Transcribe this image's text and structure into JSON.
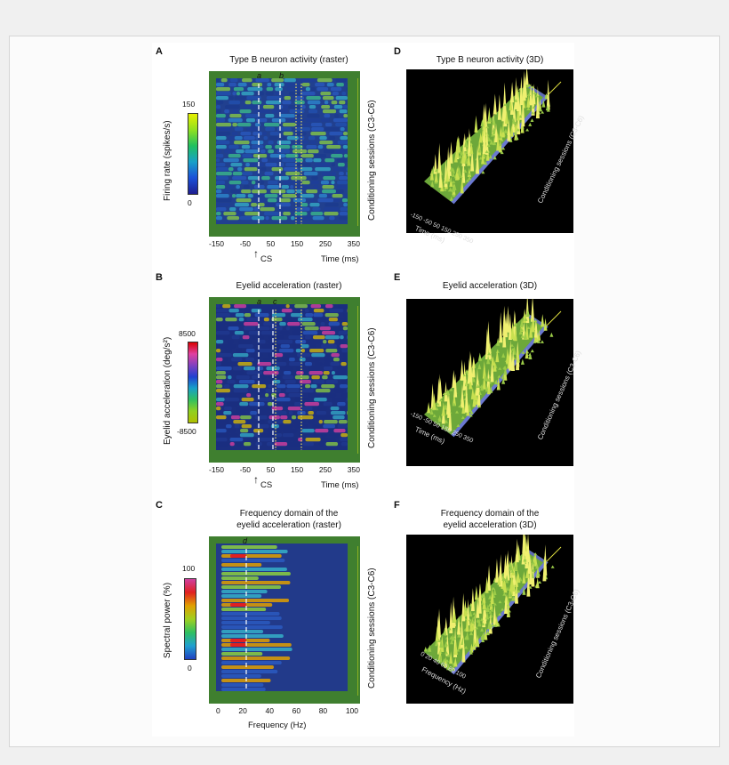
{
  "panels": {
    "A": {
      "letter": "A",
      "title": "Type B neuron activity (raster)",
      "markers": [
        "a",
        "b"
      ],
      "colorbar": {
        "max": "150",
        "min": "0",
        "label": "Firing rate (spikes/s)"
      },
      "right_label": "Conditioning sessions (C3-C6)",
      "x_ticks": [
        "-150",
        "-50",
        "50",
        "150",
        "250",
        "350"
      ],
      "x_label": "Time (ms)",
      "cs_label": "CS"
    },
    "B": {
      "letter": "B",
      "title": "Eyelid acceleration (raster)",
      "markers": [
        "a",
        "c"
      ],
      "colorbar": {
        "max": "8500",
        "min": "-8500",
        "label": "Eyelid acceleration (deg/s²)"
      },
      "right_label": "Conditioning sessions (C3-C6)",
      "x_ticks": [
        "-150",
        "-50",
        "50",
        "150",
        "250",
        "350"
      ],
      "x_label": "Time (ms)",
      "cs_label": "CS"
    },
    "C": {
      "letter": "C",
      "title_line1": "Frequency domain of the",
      "title_line2": "eyelid acceleration (raster)",
      "markers": [
        "d"
      ],
      "colorbar": {
        "max": "100",
        "min": "0",
        "label": "Spectral power (%)"
      },
      "right_label": "Conditioning sessions (C3-C6)",
      "x_ticks": [
        "0",
        "20",
        "40",
        "60",
        "80",
        "100"
      ],
      "x_label": "Frequency (Hz)"
    },
    "D": {
      "letter": "D",
      "title": "Type B neuron activity (3D)",
      "axis_ticks": "-150  -50   50  150  250  350",
      "axis_label": "Time (ms)",
      "side_label": "Conditioning sessions (C3-C6)"
    },
    "E": {
      "letter": "E",
      "title": "Eyelid acceleration (3D)",
      "axis_ticks": "-150  -50   50  150  250  350",
      "axis_label": "Time (ms)",
      "side_label": "Conditioning sessions (C3-C6)"
    },
    "F": {
      "letter": "F",
      "title_line1": "Frequency domain of the",
      "title_line2": "eyelid acceleration (3D)",
      "axis_ticks": "0  20  40  60  80  100",
      "axis_label": "Frequency (Hz)",
      "side_label": "Conditioning sessions (C3-C6)"
    }
  },
  "colors": {
    "frame_green": "#3f7f2f",
    "raster_bg": "#2b4a9a",
    "dark_bg": "#000000",
    "surface_green": "#8bc34a"
  }
}
